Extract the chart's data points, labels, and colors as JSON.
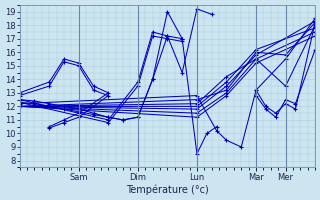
{
  "bg_color": "#cce5f0",
  "grid_color": "#aaccdd",
  "line_color": "#0000bb",
  "xlabel": "Température (°c)",
  "ylim": [
    7.5,
    19.5
  ],
  "yticks": [
    8,
    9,
    10,
    11,
    12,
    13,
    14,
    15,
    16,
    17,
    18,
    19
  ],
  "xlim": [
    0,
    120
  ],
  "day_ticks": [
    24,
    48,
    72,
    96,
    108
  ],
  "day_labels": [
    "Sam",
    "Dim",
    "Lun",
    "Mar",
    "Mer"
  ],
  "series": [
    {
      "x": [
        0,
        12,
        18,
        24,
        30,
        36,
        24,
        18,
        12
      ],
      "y": [
        13.0,
        13.8,
        15.5,
        15.2,
        13.5,
        13.0,
        11.5,
        11.0,
        10.5
      ]
    },
    {
      "x": [
        0,
        12,
        18,
        24,
        30,
        36,
        24,
        18,
        12
      ],
      "y": [
        12.8,
        13.5,
        15.3,
        15.0,
        13.2,
        12.8,
        11.2,
        10.8,
        10.4
      ]
    },
    {
      "x": [
        0,
        6,
        12,
        18,
        24,
        30,
        36,
        42,
        48,
        54,
        60,
        66,
        72,
        78
      ],
      "y": [
        12.5,
        12.4,
        12.2,
        12.0,
        11.8,
        11.5,
        11.2,
        11.0,
        11.2,
        14.0,
        17.2,
        14.5,
        19.2,
        18.8
      ]
    },
    {
      "x": [
        0,
        6,
        12,
        18,
        24,
        30,
        36,
        42,
        48,
        54,
        60,
        66,
        72,
        76,
        80
      ],
      "y": [
        12.3,
        12.2,
        12.0,
        11.8,
        11.6,
        11.4,
        11.2,
        11.0,
        11.2,
        14.0,
        19.0,
        17.0,
        8.5,
        10.0,
        10.5
      ]
    },
    {
      "x": [
        0,
        72,
        80,
        84,
        90,
        96,
        108,
        120
      ],
      "y": [
        12.2,
        12.8,
        10.2,
        9.5,
        9.0,
        13.2,
        15.5,
        18.5
      ]
    },
    {
      "x": [
        0,
        72,
        84,
        96,
        108,
        120
      ],
      "y": [
        12.0,
        12.5,
        13.2,
        16.0,
        15.8,
        18.2
      ]
    },
    {
      "x": [
        0,
        72,
        84,
        96,
        108,
        120
      ],
      "y": [
        12.0,
        12.2,
        14.2,
        15.5,
        13.5,
        18.0
      ]
    },
    {
      "x": [
        0,
        72,
        84,
        96,
        120
      ],
      "y": [
        12.0,
        12.0,
        13.8,
        16.2,
        17.8
      ]
    },
    {
      "x": [
        0,
        72,
        84,
        96,
        120
      ],
      "y": [
        12.0,
        11.8,
        13.5,
        15.8,
        18.3
      ]
    },
    {
      "x": [
        0,
        72,
        84,
        96,
        120
      ],
      "y": [
        12.0,
        11.5,
        13.0,
        15.5,
        17.5
      ]
    },
    {
      "x": [
        0,
        72,
        84,
        96,
        120
      ],
      "y": [
        12.0,
        11.2,
        12.8,
        15.2,
        17.2
      ]
    },
    {
      "x": [
        96,
        100,
        104,
        108,
        112,
        120
      ],
      "y": [
        13.2,
        12.0,
        11.5,
        12.2,
        11.8,
        18.2
      ]
    },
    {
      "x": [
        96,
        100,
        104,
        108,
        112,
        120
      ],
      "y": [
        12.8,
        11.8,
        11.2,
        12.5,
        12.2,
        16.2
      ]
    },
    {
      "x": [
        0,
        36,
        48,
        54,
        60,
        66
      ],
      "y": [
        12.5,
        11.0,
        13.8,
        17.5,
        17.2,
        17.0
      ]
    },
    {
      "x": [
        0,
        36,
        48,
        54,
        60,
        66
      ],
      "y": [
        12.3,
        10.8,
        13.5,
        17.2,
        17.0,
        16.8
      ]
    }
  ]
}
